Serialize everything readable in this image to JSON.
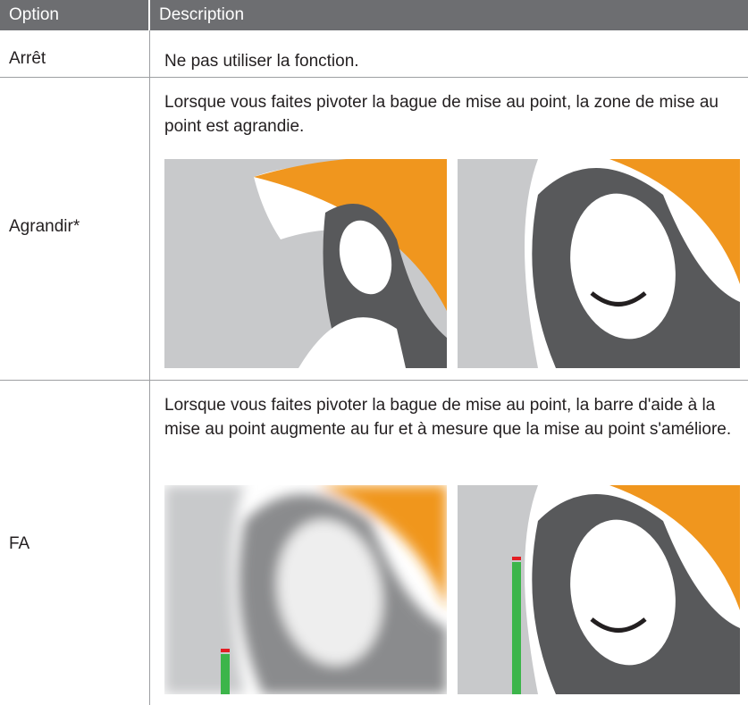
{
  "table": {
    "columns": [
      "Option",
      "Description"
    ],
    "rows": [
      {
        "option": "Arrêt",
        "description": "Ne pas utiliser la fonction."
      },
      {
        "option": "Agrandir*",
        "description": "Lorsque vous faites pivoter la bague de mise au point, la zone de mise au point est agrandie."
      },
      {
        "option": "FA",
        "description": "Lorsque vous faites pivoter la bague de mise au point, la barre d'aide à la mise au point augmente au fur et à mesure que la mise au point s'améliore."
      }
    ]
  }
}
